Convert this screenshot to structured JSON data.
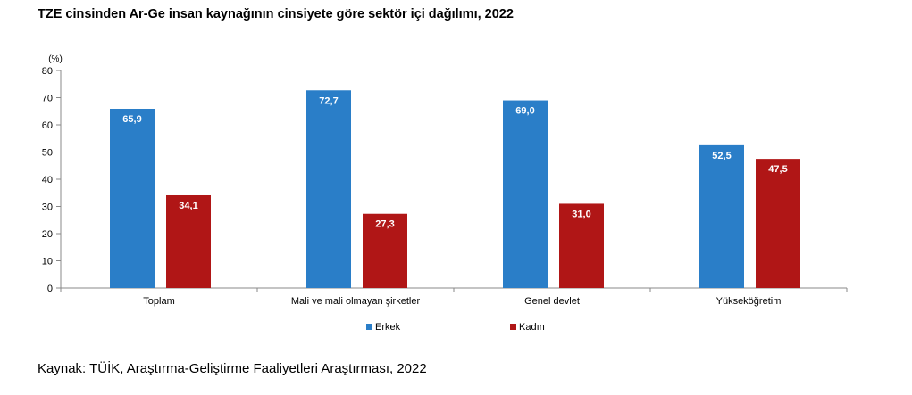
{
  "title": "TZE cinsinden Ar-Ge insan kaynağının cinsiyete göre sektör içi dağılımı, 2022",
  "source": "Kaynak: TÜİK, Araştırma-Geliştirme Faaliyetleri Araştırması, 2022",
  "chart_data": {
    "type": "bar",
    "unit_label": "(%)",
    "categories": [
      "Toplam",
      "Mali ve mali olmayan şirketler",
      "Genel devlet",
      "Yükseköğretim"
    ],
    "series": [
      {
        "name": "Erkek",
        "color": "#2a7ec8",
        "values": [
          65.9,
          72.7,
          69.0,
          52.5
        ],
        "labels": [
          "65,9",
          "72,7",
          "69,0",
          "52,5"
        ]
      },
      {
        "name": "Kadın",
        "color": "#b01616",
        "values": [
          34.1,
          27.3,
          31.0,
          47.5
        ],
        "labels": [
          "34,1",
          "27,3",
          "31,0",
          "47,5"
        ]
      }
    ],
    "ylim": [
      0,
      80
    ],
    "yticks": [
      0,
      10,
      20,
      30,
      40,
      50,
      60,
      70,
      80
    ],
    "grid": false,
    "legend": "bottom"
  }
}
